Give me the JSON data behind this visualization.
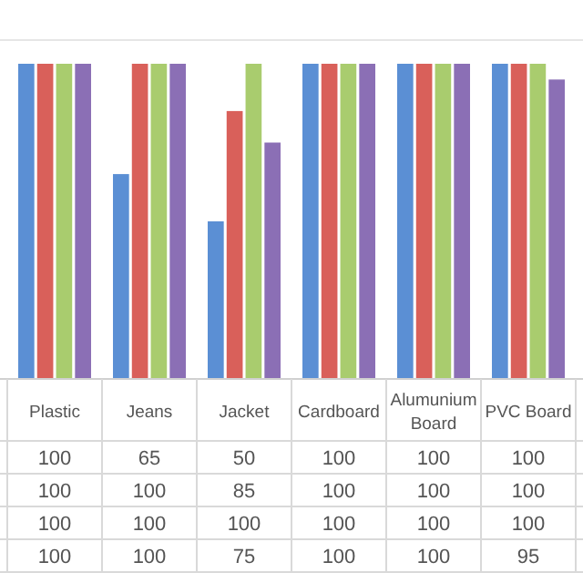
{
  "chart_data": {
    "type": "bar",
    "categories": [
      "Plastic",
      "Jeans",
      "Jacket",
      "Cardboard",
      "Alumunium Board",
      "PVC Board"
    ],
    "series": [
      {
        "color": "#5b8fd4",
        "values": [
          100,
          65,
          50,
          100,
          100,
          100
        ]
      },
      {
        "color": "#d9605a",
        "values": [
          100,
          100,
          85,
          100,
          100,
          100
        ]
      },
      {
        "color": "#a9cc6e",
        "values": [
          100,
          100,
          100,
          100,
          100,
          100
        ]
      },
      {
        "color": "#8b6fb5",
        "values": [
          100,
          100,
          75,
          100,
          100,
          95
        ]
      }
    ],
    "data_labels": true
  }
}
